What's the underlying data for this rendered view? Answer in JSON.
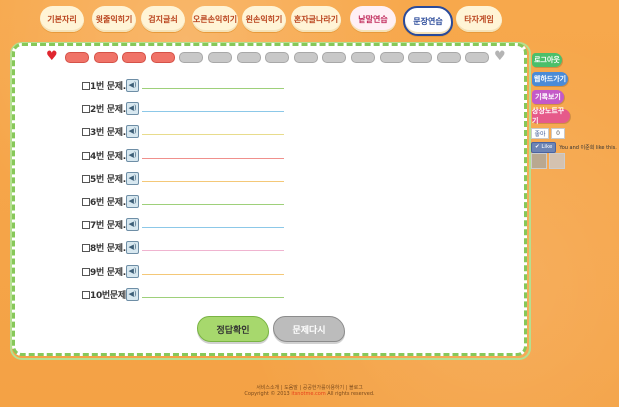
{
  "nav": [
    {
      "label": "기본자리",
      "style": "orange"
    },
    {
      "label": "윗줄익히기",
      "style": "orange"
    },
    {
      "label": "검지글쇠",
      "style": "orange"
    },
    {
      "label": "오른손익히기",
      "style": "orange"
    },
    {
      "label": "왼손익히기",
      "style": "orange"
    },
    {
      "label": "혼자글나라기",
      "style": "orange"
    },
    {
      "label": "낱말연습",
      "style": "pink"
    },
    {
      "label": "문장연습",
      "style": "active"
    },
    {
      "label": "타자게임",
      "style": "orange"
    }
  ],
  "progress": {
    "total": 15,
    "filled": 4,
    "heart_start": "♥",
    "heart_end": "♥"
  },
  "questions": [
    {
      "label": "1번 문제.",
      "line_color": "#9ed07a"
    },
    {
      "label": "2번 문제.",
      "line_color": "#8cc8e8"
    },
    {
      "label": "3번 문제.",
      "line_color": "#e8dc8c"
    },
    {
      "label": "4번 문제.",
      "line_color": "#f0908c"
    },
    {
      "label": "5번 문제.",
      "line_color": "#f4c878"
    },
    {
      "label": "6번 문제.",
      "line_color": "#9ed07a"
    },
    {
      "label": "7번 문제.",
      "line_color": "#8cc8e8"
    },
    {
      "label": "8번 문제.",
      "line_color": "#f0b4d0"
    },
    {
      "label": "9번 문제.",
      "line_color": "#f4c878"
    },
    {
      "label": "10번문제.",
      "line_color": "#9ed07a"
    }
  ],
  "speaker_glyph": "◀)",
  "buttons": {
    "check": "정답확인",
    "retry": "문제다시"
  },
  "sidebar": [
    {
      "label": "로그아웃",
      "color": "#4bbf6a"
    },
    {
      "label": "웹하드가기",
      "color": "#4b8bd6"
    },
    {
      "label": "기록보기",
      "color": "#c45ac8"
    },
    {
      "label": "상상노트꾸기",
      "color": "#e65a8a"
    }
  ],
  "facebook": {
    "badge": "좋아",
    "count": "0",
    "like": "✔ Like",
    "like_text": "You and 이준희 like this."
  },
  "footer": {
    "links": "서비스소개 | 도움말 | 공공헌가를이용하기 | 블로그",
    "copyright_prefix": "Copyright © 2013",
    "brand": "itsnotme.com",
    "copyright_suffix": "All rights reserved."
  }
}
